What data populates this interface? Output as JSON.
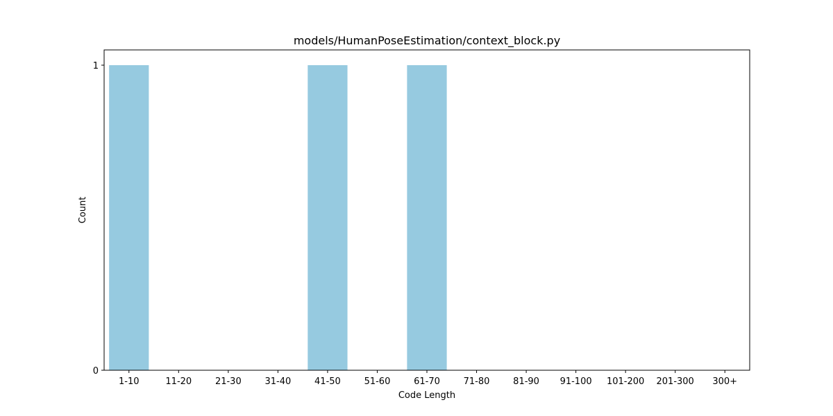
{
  "chart_data": {
    "type": "bar",
    "title": "models/HumanPoseEstimation/context_block.py",
    "xlabel": "Code Length",
    "ylabel": "Count",
    "categories": [
      "1-10",
      "11-20",
      "21-30",
      "31-40",
      "41-50",
      "51-60",
      "61-70",
      "71-80",
      "81-90",
      "91-100",
      "101-200",
      "201-300",
      "300+"
    ],
    "values": [
      1,
      0,
      0,
      0,
      1,
      0,
      1,
      0,
      0,
      0,
      0,
      0,
      0
    ],
    "ylim": [
      0,
      1.05
    ],
    "yticks": [
      0,
      1
    ],
    "grid": false,
    "legend": "none",
    "bar_color": "#96CAE0"
  }
}
